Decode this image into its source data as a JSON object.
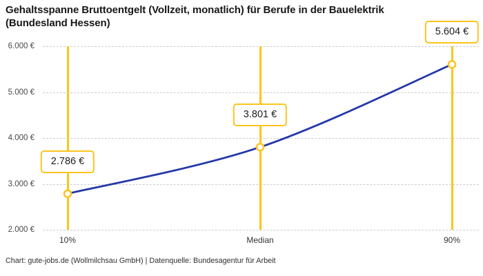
{
  "title": "Gehaltsspanne Bruttoentgelt (Vollzeit, monatlich) für Berufe in der Bauelektrik (Bundesland Hessen)",
  "footer": "Chart: gute-jobs.de (Wollmilchsau GmbH) | Datenquelle: Bundesagentur für Arbeit",
  "colors": {
    "accent_yellow": "#FCC41E",
    "line_blue": "#2438A8",
    "grid": "#CCCCCC",
    "title_text": "#18181B",
    "axis_text": "#494949",
    "value_text": "#1D1D1F"
  },
  "chart_data": {
    "type": "line",
    "title": "Gehaltsspanne Bruttoentgelt (Vollzeit, monatlich) für Berufe in der Bauelektrik (Bundesland Hessen)",
    "categories": [
      "10%",
      "Median",
      "90%"
    ],
    "values": [
      2786,
      3801,
      5604
    ],
    "value_labels": [
      "2.786 €",
      "3.801 €",
      "5.604 €"
    ],
    "xlabel": "",
    "ylabel": "",
    "ylim": [
      2000,
      6000
    ],
    "y_ticks": [
      {
        "value": 2000,
        "label": "2.000 €"
      },
      {
        "value": 3000,
        "label": "3.000 €"
      },
      {
        "value": 4000,
        "label": "4.000 €"
      },
      {
        "value": 5000,
        "label": "5.000 €"
      },
      {
        "value": 6000,
        "label": "6.000 €"
      }
    ],
    "grid": "horizontal-dashed",
    "legend": "none",
    "annotations": "vertical yellow range line at each category; value label in yellow-bordered white box above each data point; white markers with yellow ring on a smooth blue curve"
  }
}
